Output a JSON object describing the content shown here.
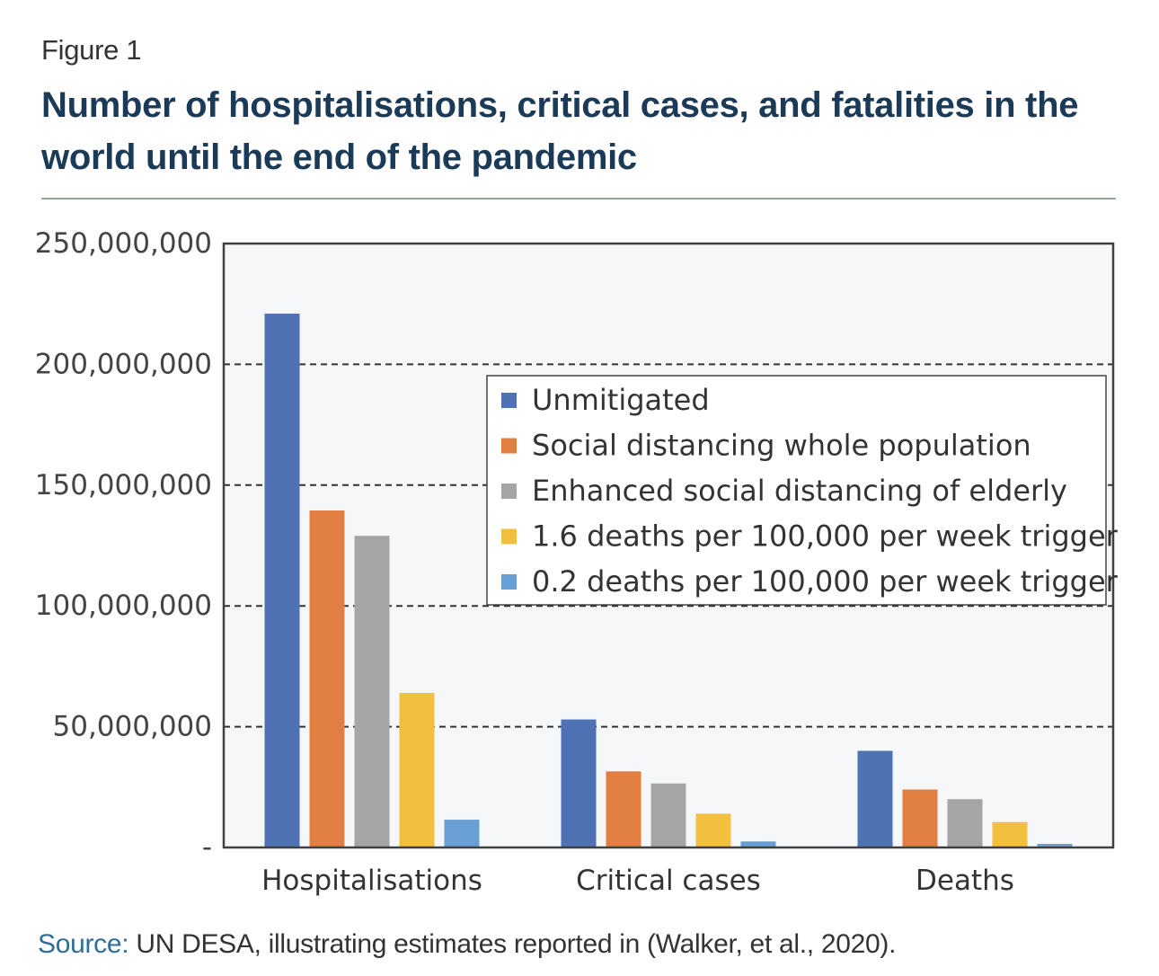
{
  "figure": {
    "label": "Figure 1",
    "title": "Number of hospitalisations, critical cases, and fatalities in the world until the end of the pandemic"
  },
  "source": {
    "key": "Source:",
    "text": " UN DESA, illustrating estimates reported in (Walker, et al., 2020)."
  },
  "colors": {
    "title": "#1b3a57",
    "rule": "#8fa89a",
    "plot_background": "#f5f7f9",
    "source_key": "#2f6e98"
  },
  "chart_data": {
    "type": "bar",
    "title": "Number of hospitalisations, critical cases, and fatalities in the world until the end of the pandemic",
    "xlabel": "",
    "ylabel": "",
    "categories": [
      "Hospitalisations",
      "Critical cases",
      "Deaths"
    ],
    "ylim": [
      0,
      250000000
    ],
    "yticks": [
      0,
      50000000,
      100000000,
      150000000,
      200000000,
      250000000
    ],
    "ytick_labels": [
      "-",
      "50,000,000",
      "100,000,000",
      "150,000,000",
      "200,000,000",
      "250,000,000"
    ],
    "grid": "horizontal dashed",
    "legend_position": "top-right",
    "series": [
      {
        "name": "Unmitigated",
        "color": "#4f72b5",
        "values": [
          221000000,
          53000000,
          40000000
        ]
      },
      {
        "name": "Social distancing whole population",
        "color": "#e07f41",
        "values": [
          139500000,
          31500000,
          24000000
        ]
      },
      {
        "name": "Enhanced social distancing of elderly",
        "color": "#a5a5a5",
        "values": [
          129000000,
          26500000,
          20000000
        ]
      },
      {
        "name": "1.6 deaths per 100,000 per week trigger",
        "color": "#f3bf3f",
        "values": [
          64000000,
          14000000,
          10500000
        ]
      },
      {
        "name": "0.2 deaths per 100,000 per week trigger",
        "color": "#6a9fd6",
        "values": [
          11500000,
          2500000,
          1500000
        ]
      }
    ]
  }
}
